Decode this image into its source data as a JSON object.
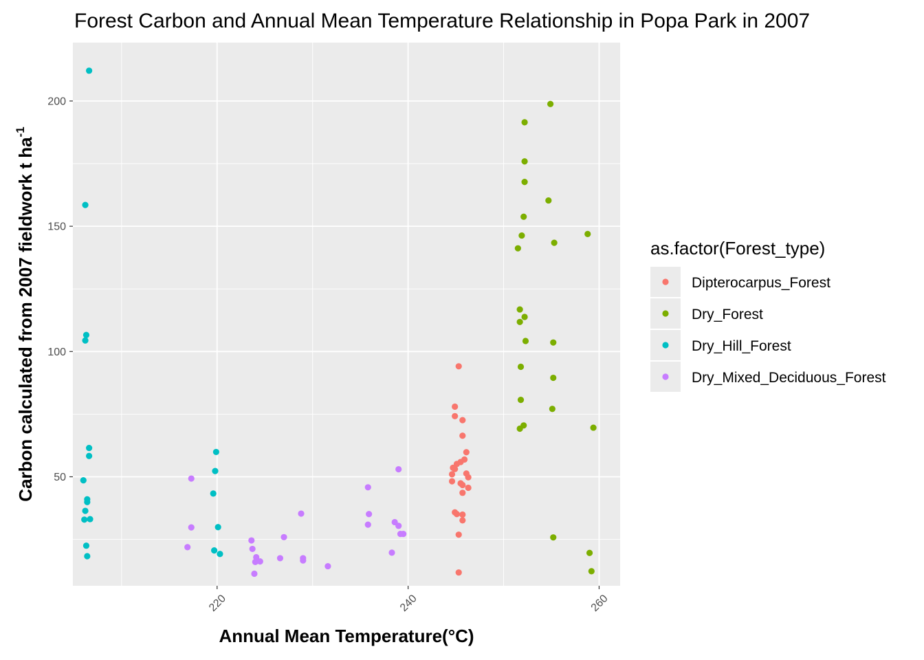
{
  "chart_data": {
    "type": "scatter",
    "title": "Forest Carbon and Annual Mean Temperature Relationship in Popa Park in 2007",
    "xlabel": "Annual Mean Temperature(°C)",
    "ylabel": "Carbon calculated from 2007 fieldwork t ha",
    "ylabel_superscript": "-1",
    "xlim": [
      204.9,
      262.2
    ],
    "ylim": [
      6.5,
      223.3
    ],
    "x_ticks": [
      220,
      240,
      260
    ],
    "y_ticks": [
      50,
      100,
      150,
      200
    ],
    "x_minor_ticks": [
      210,
      230,
      250
    ],
    "y_minor_ticks": [
      25,
      75,
      125,
      175
    ],
    "grid": true,
    "legend_title": "as.factor(Forest_type)",
    "legend_position": "right",
    "series": [
      {
        "name": "Dipterocarpus_Forest",
        "color": "#F8766D",
        "points": [
          [
            245.3,
            94.1
          ],
          [
            244.9,
            78.0
          ],
          [
            244.9,
            74.2
          ],
          [
            245.7,
            72.6
          ],
          [
            245.7,
            66.4
          ],
          [
            246.1,
            59.8
          ],
          [
            245.9,
            56.9
          ],
          [
            245.5,
            55.9
          ],
          [
            245.1,
            55.1
          ],
          [
            244.7,
            53.6
          ],
          [
            244.9,
            53.1
          ],
          [
            244.6,
            51.0
          ],
          [
            246.1,
            51.3
          ],
          [
            246.3,
            49.8
          ],
          [
            244.6,
            48.2
          ],
          [
            245.5,
            47.4
          ],
          [
            245.7,
            46.7
          ],
          [
            246.3,
            45.6
          ],
          [
            245.7,
            43.6
          ],
          [
            244.9,
            35.8
          ],
          [
            245.1,
            35.1
          ],
          [
            245.7,
            34.9
          ],
          [
            245.7,
            32.6
          ],
          [
            245.3,
            26.9
          ],
          [
            245.3,
            11.8
          ]
        ]
      },
      {
        "name": "Dry_Forest",
        "color": "#7CAE00",
        "points": [
          [
            254.9,
            198.8
          ],
          [
            252.2,
            191.5
          ],
          [
            252.2,
            175.9
          ],
          [
            252.2,
            167.7
          ],
          [
            254.7,
            160.3
          ],
          [
            252.1,
            153.8
          ],
          [
            251.9,
            146.3
          ],
          [
            251.5,
            141.2
          ],
          [
            258.8,
            146.9
          ],
          [
            255.3,
            143.4
          ],
          [
            251.7,
            116.8
          ],
          [
            252.2,
            113.8
          ],
          [
            251.7,
            111.8
          ],
          [
            252.3,
            104.2
          ],
          [
            255.2,
            103.6
          ],
          [
            251.8,
            93.9
          ],
          [
            255.2,
            89.5
          ],
          [
            251.8,
            80.7
          ],
          [
            255.1,
            77.1
          ],
          [
            252.1,
            70.5
          ],
          [
            251.7,
            69.2
          ],
          [
            259.4,
            69.6
          ],
          [
            255.2,
            25.8
          ],
          [
            259.0,
            19.6
          ],
          [
            259.2,
            12.3
          ]
        ]
      },
      {
        "name": "Dry_Hill_Forest",
        "color": "#00BFC4",
        "points": [
          [
            206.6,
            212.1
          ],
          [
            206.2,
            158.5
          ],
          [
            206.3,
            106.6
          ],
          [
            206.2,
            104.4
          ],
          [
            206.6,
            61.5
          ],
          [
            206.6,
            58.3
          ],
          [
            219.9,
            59.9
          ],
          [
            219.8,
            52.3
          ],
          [
            206.0,
            48.6
          ],
          [
            206.4,
            41.0
          ],
          [
            206.4,
            39.9
          ],
          [
            219.6,
            43.3
          ],
          [
            206.2,
            36.4
          ],
          [
            206.1,
            32.9
          ],
          [
            206.7,
            33.1
          ],
          [
            220.1,
            29.9
          ],
          [
            206.3,
            22.5
          ],
          [
            219.7,
            20.6
          ],
          [
            206.4,
            18.3
          ],
          [
            220.3,
            19.2
          ]
        ]
      },
      {
        "name": "Dry_Mixed_Deciduous_Forest",
        "color": "#C77CFF",
        "points": [
          [
            217.3,
            49.3
          ],
          [
            217.3,
            29.8
          ],
          [
            216.9,
            21.9
          ],
          [
            223.6,
            24.6
          ],
          [
            223.7,
            21.2
          ],
          [
            224.1,
            17.9
          ],
          [
            224.0,
            16.0
          ],
          [
            224.5,
            16.2
          ],
          [
            223.9,
            11.3
          ],
          [
            226.6,
            17.5
          ],
          [
            227.0,
            25.9
          ],
          [
            228.8,
            35.3
          ],
          [
            229.0,
            17.5
          ],
          [
            229.0,
            16.6
          ],
          [
            231.6,
            14.3
          ],
          [
            235.8,
            45.8
          ],
          [
            235.9,
            35.1
          ],
          [
            235.8,
            30.9
          ],
          [
            238.3,
            19.7
          ],
          [
            238.6,
            31.9
          ],
          [
            239.0,
            30.4
          ],
          [
            239.2,
            27.2
          ],
          [
            239.5,
            27.2
          ],
          [
            239.0,
            53.0
          ]
        ]
      }
    ]
  }
}
